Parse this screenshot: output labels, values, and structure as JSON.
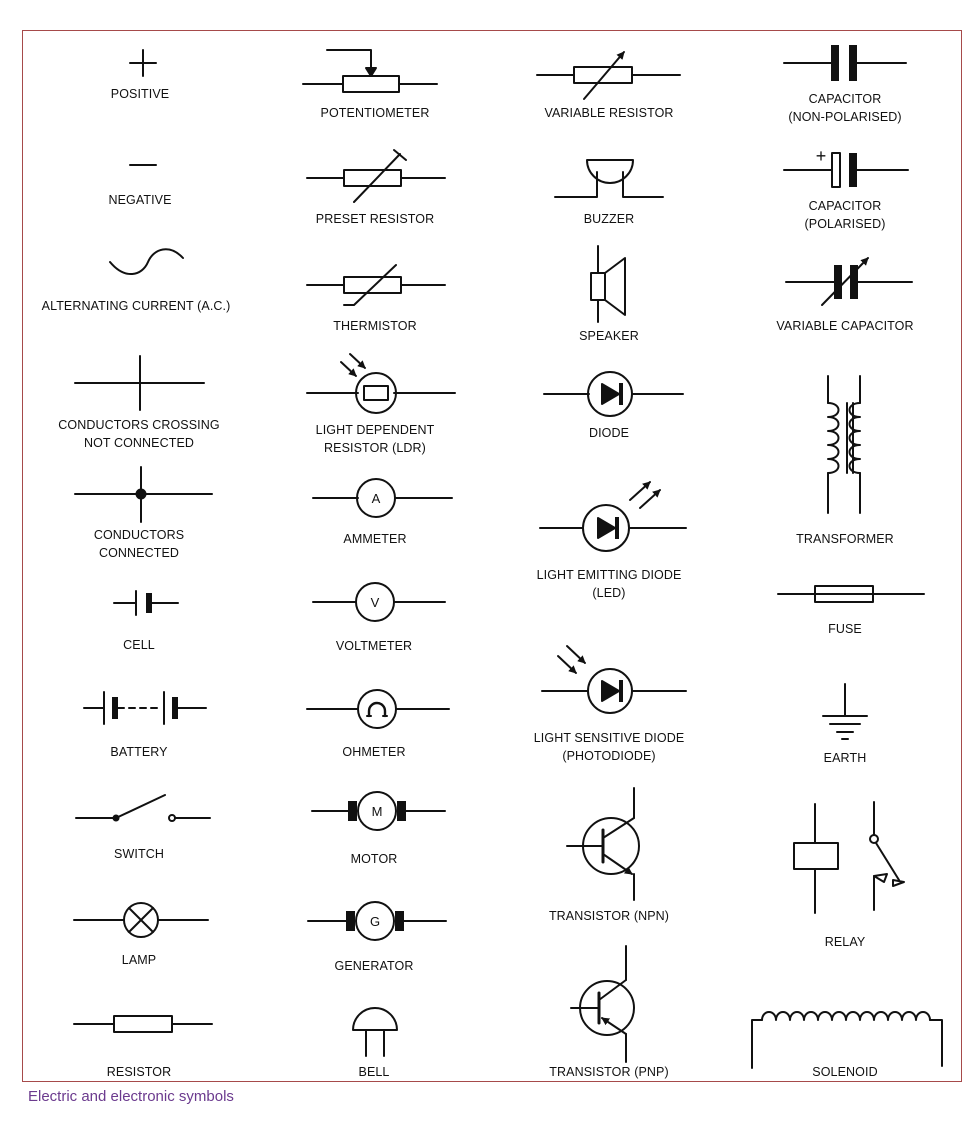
{
  "caption": "Electric and electronic symbols",
  "symbols": [
    {
      "label": "POSITIVE"
    },
    {
      "label": "NEGATIVE"
    },
    {
      "label": "ALTERNATING CURRENT (A.C.)"
    },
    {
      "label": "CONDUCTORS CROSSING\nNOT CONNECTED"
    },
    {
      "label": "CONDUCTORS\nCONNECTED"
    },
    {
      "label": "CELL"
    },
    {
      "label": "BATTERY"
    },
    {
      "label": "SWITCH"
    },
    {
      "label": "LAMP"
    },
    {
      "label": "RESISTOR"
    },
    {
      "label": "POTENTIOMETER"
    },
    {
      "label": "PRESET RESISTOR"
    },
    {
      "label": "THERMISTOR"
    },
    {
      "label": "LIGHT DEPENDENT\nRESISTOR (LDR)"
    },
    {
      "label": "AMMETER",
      "glyph": "A"
    },
    {
      "label": "VOLTMETER",
      "glyph": "V"
    },
    {
      "label": "OHMETER"
    },
    {
      "label": "MOTOR",
      "glyph": "M"
    },
    {
      "label": "GENERATOR",
      "glyph": "G"
    },
    {
      "label": "BELL"
    },
    {
      "label": "VARIABLE RESISTOR"
    },
    {
      "label": "BUZZER"
    },
    {
      "label": "SPEAKER"
    },
    {
      "label": "DIODE"
    },
    {
      "label": "LIGHT EMITTING DIODE\n(LED)"
    },
    {
      "label": "LIGHT SENSITIVE DIODE\n(PHOTODIODE)"
    },
    {
      "label": "TRANSISTOR (NPN)"
    },
    {
      "label": "TRANSISTOR (PNP)"
    },
    {
      "label": "CAPACITOR\n(NON-POLARISED)"
    },
    {
      "label": "CAPACITOR\n(POLARISED)",
      "glyph": "+"
    },
    {
      "label": "VARIABLE CAPACITOR"
    },
    {
      "label": "TRANSFORMER"
    },
    {
      "label": "FUSE"
    },
    {
      "label": "EARTH"
    },
    {
      "label": "RELAY"
    },
    {
      "label": "SOLENOID"
    }
  ]
}
